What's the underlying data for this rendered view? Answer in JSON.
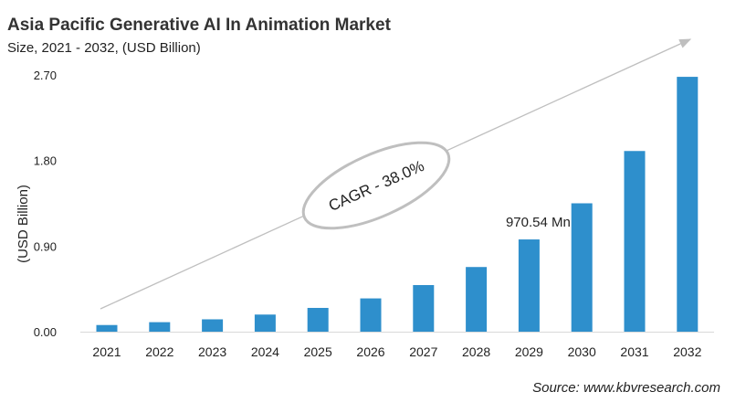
{
  "title": "Asia Pacific Generative AI In Animation Market",
  "subtitle": "Size, 2021 - 2032, (USD Billion)",
  "source": "Source: www.kbvresearch.com",
  "cagr_label": "CAGR - 38.0%",
  "colors": {
    "bar": "#2E8FCC",
    "arrow": "#BFBFBF",
    "ellipse": "#BFBFBF"
  },
  "chart_data": {
    "type": "bar",
    "categories": [
      "2021",
      "2022",
      "2023",
      "2024",
      "2025",
      "2026",
      "2027",
      "2028",
      "2029",
      "2030",
      "2031",
      "2032"
    ],
    "values": [
      0.07,
      0.1,
      0.13,
      0.18,
      0.25,
      0.35,
      0.49,
      0.68,
      0.97,
      1.35,
      1.9,
      2.68
    ],
    "ylabel": "(USD Billion)",
    "xlabel": "",
    "ylim": [
      0,
      2.7
    ],
    "yticks": [
      "0.00",
      "0.90",
      "1.80",
      "2.70"
    ],
    "ytick_values": [
      0,
      0.9,
      1.8,
      2.7
    ],
    "annotations": [
      {
        "category": "2029",
        "text": "970.54 Mn"
      }
    ],
    "grid": false,
    "legend": "none"
  }
}
